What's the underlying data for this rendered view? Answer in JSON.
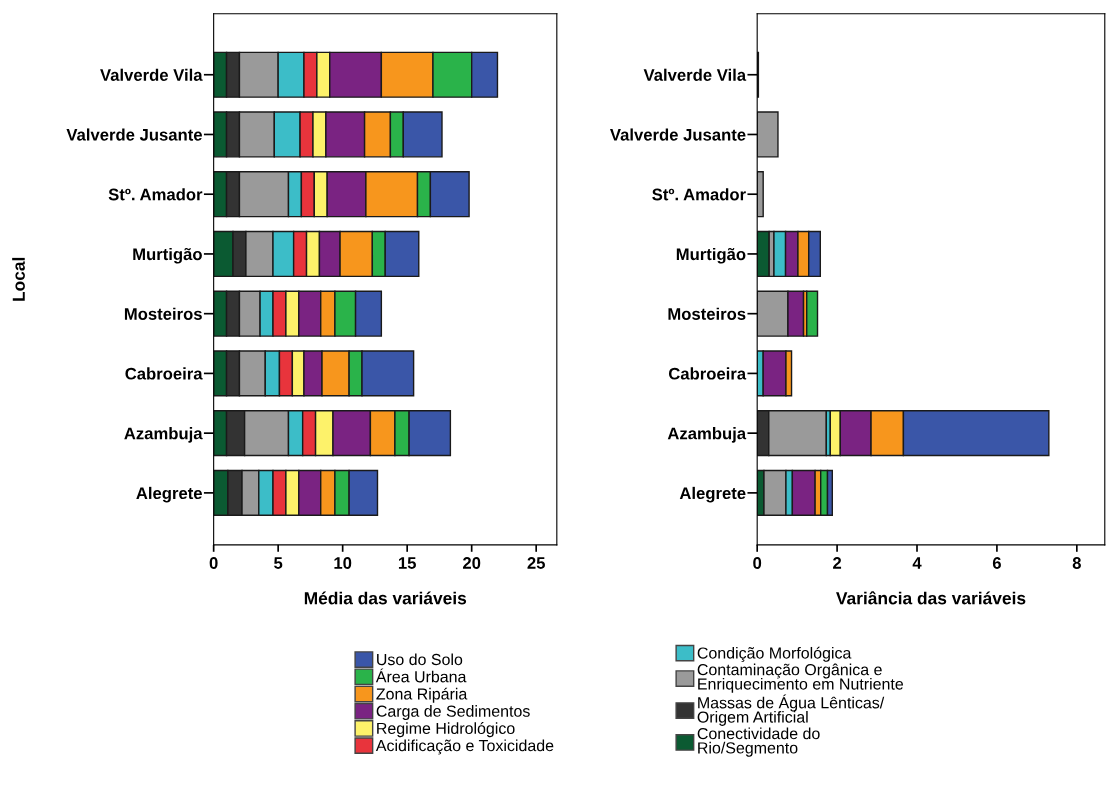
{
  "chart_data": [
    {
      "type": "bar",
      "orientation": "horizontal",
      "stacked": true,
      "xlabel": "Média das variáveis",
      "ylabel": "Local",
      "legend": "bottom",
      "grid": false,
      "categories": [
        "Valverde Vila",
        "Valverde Jusante",
        "Stº. Amador",
        "Murtigão",
        "Mosteiros",
        "Cabroeira",
        "Azambuja",
        "Alegrete"
      ],
      "xlim": [
        0,
        26.6
      ],
      "xticks": [
        0,
        5,
        10,
        15,
        20,
        25
      ],
      "series": [
        {
          "name": "Conectividade do Rio/Segmento",
          "color": "#0b5a32",
          "values": [
            1.0,
            1.0,
            1.0,
            1.5,
            1.0,
            1.0,
            1.0,
            1.1
          ]
        },
        {
          "name": "Massas de Água Lênticas/ Origem Artificial",
          "color": "#333333",
          "values": [
            1.0,
            1.0,
            1.0,
            1.0,
            1.0,
            1.0,
            1.4,
            1.1
          ]
        },
        {
          "name": "Contaminação Orgânica e Enriquecimento em Nutriente",
          "color": "#9a9a9a",
          "values": [
            3.0,
            2.7,
            3.8,
            2.1,
            1.6,
            2.0,
            3.4,
            1.3
          ]
        },
        {
          "name": "Condição Morfológica",
          "color": "#3cbdc8",
          "values": [
            2.0,
            2.0,
            1.0,
            1.6,
            1.0,
            1.1,
            1.1,
            1.1
          ]
        },
        {
          "name": "Acidificação e Toxicidade",
          "color": "#e8343c",
          "values": [
            1.0,
            1.0,
            1.0,
            1.0,
            1.0,
            1.0,
            1.0,
            1.0
          ]
        },
        {
          "name": "Regime Hidrológico",
          "color": "#fdf26a",
          "values": [
            1.0,
            1.0,
            1.0,
            1.0,
            1.0,
            0.9,
            1.35,
            1.0
          ]
        },
        {
          "name": "Carga de Sedimentos",
          "color": "#7a2382",
          "values": [
            4.0,
            3.0,
            3.0,
            1.6,
            1.7,
            1.4,
            2.9,
            1.7
          ]
        },
        {
          "name": "Zona Ripária",
          "color": "#f7961d",
          "values": [
            4.0,
            2.0,
            4.0,
            2.5,
            1.1,
            2.1,
            1.9,
            1.1
          ]
        },
        {
          "name": "Área Urbana",
          "color": "#2ab34a",
          "values": [
            3.0,
            1.0,
            1.0,
            1.0,
            1.6,
            1.0,
            1.1,
            1.1
          ]
        },
        {
          "name": "Uso do Solo",
          "color": "#3a56a8",
          "values": [
            2.0,
            3.0,
            3.0,
            2.6,
            2.0,
            4.0,
            3.2,
            2.2
          ]
        }
      ]
    },
    {
      "type": "bar",
      "orientation": "horizontal",
      "stacked": true,
      "xlabel": "Variância das variáveis",
      "grid": false,
      "categories": [
        "Valverde Vila",
        "Valverde Jusante",
        "Stº. Amador",
        "Murtigão",
        "Mosteiros",
        "Cabroeira",
        "Azambuja",
        "Alegrete"
      ],
      "xlim": [
        0,
        8.7
      ],
      "xticks": [
        0,
        2,
        4,
        6,
        8
      ],
      "series": [
        {
          "color": "#0b5a32",
          "values": [
            null,
            null,
            null,
            0.3,
            null,
            null,
            null,
            0.17
          ]
        },
        {
          "color": "#333333",
          "values": [
            0.03,
            null,
            null,
            null,
            null,
            null,
            0.29,
            null
          ]
        },
        {
          "color": "#9a9a9a",
          "values": [
            null,
            0.52,
            0.15,
            0.12,
            0.77,
            null,
            1.44,
            0.55
          ]
        },
        {
          "color": "#3cbdc8",
          "values": [
            null,
            null,
            null,
            0.29,
            null,
            0.15,
            0.1,
            0.16
          ]
        },
        {
          "color": "#e8343c",
          "values": [
            null,
            null,
            null,
            null,
            null,
            null,
            null,
            null
          ]
        },
        {
          "color": "#fdf26a",
          "values": [
            null,
            null,
            null,
            null,
            null,
            null,
            0.25,
            null
          ]
        },
        {
          "color": "#7a2382",
          "values": [
            null,
            null,
            null,
            0.31,
            0.39,
            0.57,
            0.77,
            0.57
          ]
        },
        {
          "color": "#f7961d",
          "values": [
            null,
            null,
            null,
            0.27,
            0.08,
            0.14,
            0.81,
            0.14
          ]
        },
        {
          "color": "#2ab34a",
          "values": [
            null,
            null,
            null,
            null,
            0.27,
            null,
            null,
            0.17
          ]
        },
        {
          "color": "#3a56a8",
          "values": [
            null,
            null,
            null,
            0.29,
            null,
            null,
            3.64,
            0.12
          ]
        }
      ]
    }
  ]
}
